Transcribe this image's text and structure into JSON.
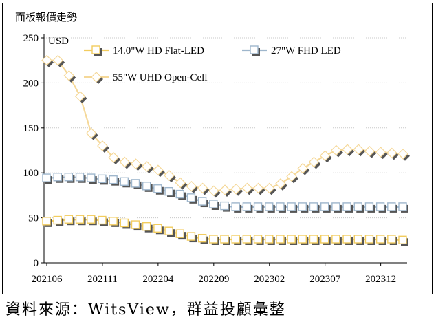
{
  "chart_data": {
    "type": "line",
    "title": "面板報價走勢",
    "ylabel": "USD",
    "xlabel": "",
    "ylim": [
      0,
      250
    ],
    "yticks": [
      0,
      50,
      100,
      150,
      200,
      250
    ],
    "x_tick_labels": [
      "202106",
      "202111",
      "202204",
      "202209",
      "202302",
      "202307",
      "202312"
    ],
    "x_tick_indices": [
      0,
      5,
      10,
      15,
      20,
      25,
      30
    ],
    "x_count": 33,
    "grid": true,
    "legend_position": "top",
    "series": [
      {
        "name": "14.0\"W HD Flat-LED",
        "color": "#f2cc5e",
        "marker": "square",
        "values": [
          46,
          47,
          48,
          48,
          48,
          47,
          46,
          44,
          42,
          40,
          38,
          35,
          32,
          29,
          27,
          26,
          26,
          26,
          26,
          26,
          26,
          26,
          26,
          26,
          26,
          26,
          26,
          26,
          26,
          26,
          26,
          26,
          25
        ]
      },
      {
        "name": "27\"W FHD LED",
        "color": "#9eb6cc",
        "marker": "square",
        "values": [
          94,
          95,
          95,
          95,
          94,
          93,
          92,
          90,
          88,
          85,
          82,
          79,
          76,
          72,
          68,
          65,
          63,
          62,
          62,
          62,
          62,
          62,
          62,
          62,
          62,
          62,
          62,
          62,
          62,
          62,
          62,
          62,
          62
        ]
      },
      {
        "name": "55\"W UHD Open-Cell",
        "color": "#f5d898",
        "marker": "diamond",
        "values": [
          225,
          225,
          208,
          185,
          144,
          130,
          117,
          112,
          110,
          107,
          103,
          97,
          89,
          85,
          83,
          80,
          81,
          82,
          83,
          83,
          83,
          88,
          96,
          105,
          112,
          119,
          125,
          126,
          126,
          124,
          123,
          122,
          121
        ]
      }
    ]
  },
  "source_text": "資料來源：WitsView，群益投顧彙整"
}
